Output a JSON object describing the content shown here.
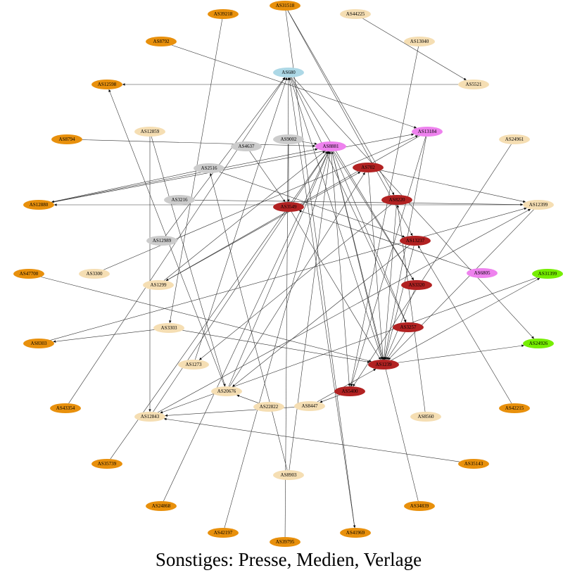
{
  "nodes": [
    {
      "label": "AS39218"
    },
    {
      "label": "AS31518"
    },
    {
      "label": "AS8792"
    },
    {
      "label": "AS12598"
    },
    {
      "label": "AS8794"
    },
    {
      "label": "AS12880"
    },
    {
      "label": "AS47700"
    },
    {
      "label": "AS8303"
    },
    {
      "label": "AS43354"
    },
    {
      "label": "AS35739"
    },
    {
      "label": "AS24868"
    },
    {
      "label": "AS42197"
    },
    {
      "label": "AS39795"
    },
    {
      "label": "AS41969"
    },
    {
      "label": "AS34839"
    },
    {
      "label": "AS35143"
    },
    {
      "label": "AS42215"
    },
    {
      "label": "AS44225"
    },
    {
      "label": "AS13040"
    },
    {
      "label": "AS5521"
    },
    {
      "label": "AS24961"
    },
    {
      "label": "AS12399"
    },
    {
      "label": "AS12859"
    },
    {
      "label": "AS3300"
    },
    {
      "label": "AS1299"
    },
    {
      "label": "AS3303"
    },
    {
      "label": "AS1273"
    },
    {
      "label": "AS20676"
    },
    {
      "label": "AS22822"
    },
    {
      "label": "AS8447"
    },
    {
      "label": "AS12843"
    },
    {
      "label": "AS8560"
    },
    {
      "label": "AS8903"
    },
    {
      "label": "AS9002"
    },
    {
      "label": "AS4637"
    },
    {
      "label": "AS2516"
    },
    {
      "label": "AS3216"
    },
    {
      "label": "AS12989"
    },
    {
      "label": "AS680"
    },
    {
      "label": "AS8881"
    },
    {
      "label": "AS13184"
    },
    {
      "label": "AS6805"
    },
    {
      "label": "AS702"
    },
    {
      "label": "AS3549"
    },
    {
      "label": "AS8220"
    },
    {
      "label": "AS13237"
    },
    {
      "label": "AS3320"
    },
    {
      "label": "AS3257"
    },
    {
      "label": "AS1239"
    },
    {
      "label": "AS5400"
    },
    {
      "label": "AS31399"
    },
    {
      "label": "AS24926"
    }
  ],
  "caption": "Sonstiges: Presse, Medien, Verlage"
}
